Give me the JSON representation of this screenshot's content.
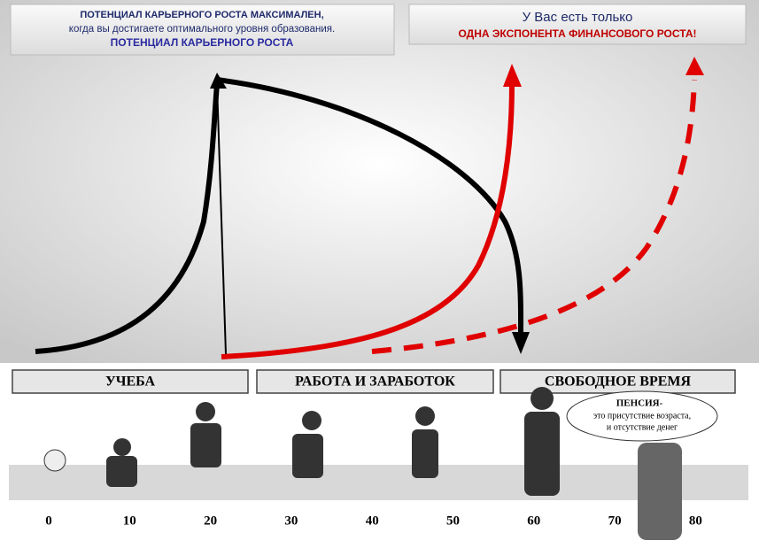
{
  "header_left": {
    "line1": "ПОТЕНЦИАЛ  КАРЬЕРНОГО  РОСТА  МАКСИМАЛЕН,",
    "line2": "когда вы достигаете  оптимального уровня  образования.",
    "line3": "ПОТЕНЦИАЛ  КАРЬЕРНОГО  РОСТА"
  },
  "header_right": {
    "line1": "У  Вас  есть  только",
    "line2": "ОДНА  ЭКСПОНЕНТА  ФИНАНСОВОГО РОСТА!"
  },
  "stages": [
    "УЧЕБА",
    "РАБОТА И ЗАРАБОТОК",
    "СВОБОДНОЕ ВРЕМЯ"
  ],
  "ages": [
    "0",
    "10",
    "20",
    "30",
    "40",
    "50",
    "60",
    "70",
    "80"
  ],
  "bubble": {
    "line1": "ПЕНСИЯ-",
    "line2": "это присутствие возраста,",
    "line3": "и отсутствие денег"
  }
}
